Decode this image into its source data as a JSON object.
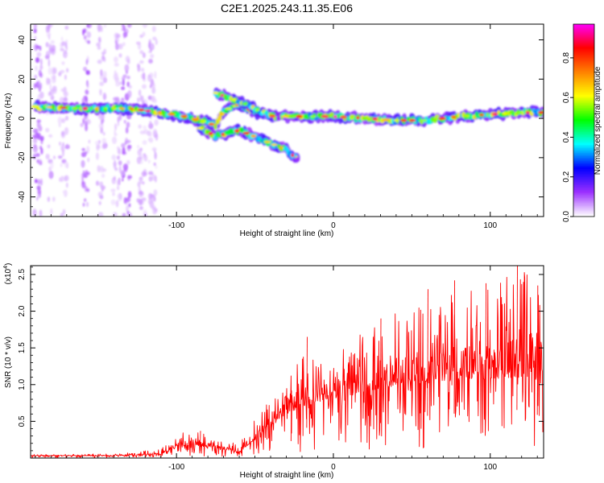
{
  "page": {
    "title": "C2E1.2025.243.11.35.E06"
  },
  "chart_data": [
    {
      "type": "heatmap",
      "title": "C2E1.2025.243.11.35.E06",
      "xlabel": "Height of straight line (km)",
      "ylabel": "Frequency (Hz)",
      "xlim": [
        -193,
        134
      ],
      "ylim": [
        -50,
        48
      ],
      "x_ticks": [
        -100,
        0,
        100
      ],
      "x_tick_labels": [
        "-100",
        "0",
        "100"
      ],
      "y_ticks": [
        40,
        20,
        0,
        -20,
        -40
      ],
      "y_tick_labels": [
        "40",
        "20",
        "0",
        "-20",
        "-40"
      ],
      "colorbar": {
        "label": "Normalized spectral amplitude",
        "range": [
          0,
          0.97
        ],
        "ticks": [
          0.0,
          0.2,
          0.4,
          0.6,
          0.8
        ],
        "tick_labels": [
          "0.0",
          "0.2",
          "0.4",
          "0.6",
          "0.8"
        ],
        "colormap": [
          "#ffffff",
          "#9b30ff",
          "#0000ff",
          "#00ffff",
          "#00ff00",
          "#ffff00",
          "#ff8000",
          "#ff0000",
          "#ff00ff"
        ]
      },
      "ridges": [
        {
          "name": "main band",
          "points": [
            [
              -190,
              6
            ],
            [
              -160,
              5
            ],
            [
              -130,
              5
            ],
            [
              -110,
              3
            ],
            [
              -95,
              1
            ],
            [
              -80,
              -2
            ],
            [
              -75,
              -4
            ],
            [
              -70,
              4
            ],
            [
              -60,
              7
            ],
            [
              -50,
              3
            ],
            [
              -35,
              1
            ],
            [
              -20,
              1
            ],
            [
              0,
              1
            ],
            [
              20,
              0
            ],
            [
              40,
              -1
            ],
            [
              60,
              -1
            ],
            [
              80,
              1
            ],
            [
              100,
              2
            ],
            [
              120,
              3
            ],
            [
              134,
              3
            ]
          ]
        },
        {
          "name": "upper branch",
          "points": [
            [
              -75,
              13
            ],
            [
              -65,
              10
            ],
            [
              -55,
              7
            ],
            [
              -45,
              3
            ],
            [
              -35,
              0
            ]
          ]
        },
        {
          "name": "lower branch",
          "points": [
            [
              -85,
              -5
            ],
            [
              -75,
              -9
            ],
            [
              -60,
              -6
            ],
            [
              -45,
              -11
            ],
            [
              -30,
              -16
            ],
            [
              -23,
              -21
            ]
          ]
        }
      ]
    },
    {
      "type": "line",
      "xlabel": "Height of straight line (km)",
      "ylabel": "SNR (10 * v/v)",
      "y_multiplier_label": "(x10",
      "y_multiplier_exponent": "4",
      "y_multiplier_suffix": ")",
      "xlim": [
        -193,
        134
      ],
      "ylim": [
        0,
        2.62
      ],
      "x_ticks": [
        -100,
        0,
        100
      ],
      "x_tick_labels": [
        "-100",
        "0",
        "100"
      ],
      "y_ticks": [
        0.5,
        1.0,
        1.5,
        2.0,
        2.5
      ],
      "y_tick_labels": [
        "0.5",
        "1.0",
        "1.5",
        "2.0",
        "2.5"
      ],
      "color": "#ff0000",
      "envelope": {
        "x": [
          -193,
          -140,
          -110,
          -100,
          -90,
          -80,
          -70,
          -60,
          -50,
          -40,
          -30,
          -20,
          -10,
          0,
          20,
          40,
          60,
          80,
          100,
          120,
          134
        ],
        "mean": [
          0.03,
          0.03,
          0.05,
          0.15,
          0.18,
          0.15,
          0.12,
          0.08,
          0.25,
          0.45,
          0.6,
          0.7,
          0.75,
          0.8,
          0.9,
          1.0,
          1.05,
          1.05,
          1.08,
          1.1,
          1.1
        ],
        "max": [
          0.05,
          0.06,
          0.12,
          0.35,
          0.4,
          0.3,
          0.22,
          0.2,
          0.55,
          0.8,
          1.2,
          1.65,
          1.4,
          1.55,
          1.7,
          2.0,
          2.3,
          2.45,
          2.35,
          2.62,
          2.3
        ]
      },
      "peaks": [
        [
          -85,
          0.37
        ],
        [
          -27,
          0.92
        ],
        [
          -17,
          1.65
        ],
        [
          30,
          1.9
        ],
        [
          60,
          2.3
        ],
        [
          77,
          2.42
        ],
        [
          97,
          2.38
        ],
        [
          117,
          2.62
        ],
        [
          130,
          2.35
        ]
      ]
    }
  ]
}
